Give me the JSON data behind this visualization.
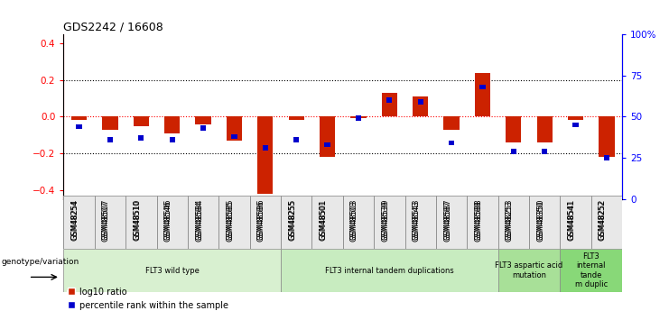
{
  "title": "GDS2242 / 16608",
  "samples": [
    "GSM48254",
    "GSM48507",
    "GSM48510",
    "GSM48546",
    "GSM48584",
    "GSM48585",
    "GSM48586",
    "GSM48255",
    "GSM48501",
    "GSM48503",
    "GSM48539",
    "GSM48543",
    "GSM48587",
    "GSM48588",
    "GSM48253",
    "GSM48350",
    "GSM48541",
    "GSM48252"
  ],
  "log10_ratio": [
    -0.02,
    -0.07,
    -0.05,
    -0.09,
    -0.04,
    -0.13,
    -0.42,
    -0.02,
    -0.22,
    -0.01,
    0.13,
    0.11,
    -0.07,
    0.24,
    -0.14,
    -0.14,
    -0.02,
    -0.22
  ],
  "percentile_rank": [
    44,
    36,
    37,
    36,
    43,
    38,
    31,
    36,
    33,
    49,
    60,
    59,
    34,
    68,
    29,
    29,
    45,
    25
  ],
  "groups": [
    {
      "label": "FLT3 wild type",
      "start": 0,
      "end": 6,
      "color": "#d8f0d0"
    },
    {
      "label": "FLT3 internal tandem duplications",
      "start": 7,
      "end": 13,
      "color": "#c8ecc0"
    },
    {
      "label": "FLT3 aspartic acid\nmutation",
      "start": 14,
      "end": 15,
      "color": "#a8e098"
    },
    {
      "label": "FLT3\ninternal\ntande\nm duplic",
      "start": 16,
      "end": 17,
      "color": "#88d878"
    }
  ],
  "bar_color_red": "#cc2200",
  "bar_color_blue": "#0000cc",
  "ylim_left": [
    -0.45,
    0.45
  ],
  "ylim_right": [
    0,
    100
  ],
  "yticks_left": [
    -0.4,
    -0.2,
    0.0,
    0.2,
    0.4
  ],
  "yticks_right": [
    0,
    25,
    50,
    75,
    100
  ],
  "yticklabels_right": [
    "0",
    "25",
    "50",
    "75",
    "100%"
  ],
  "background_color": "#ffffff",
  "genotype_label": "genotype/variation"
}
